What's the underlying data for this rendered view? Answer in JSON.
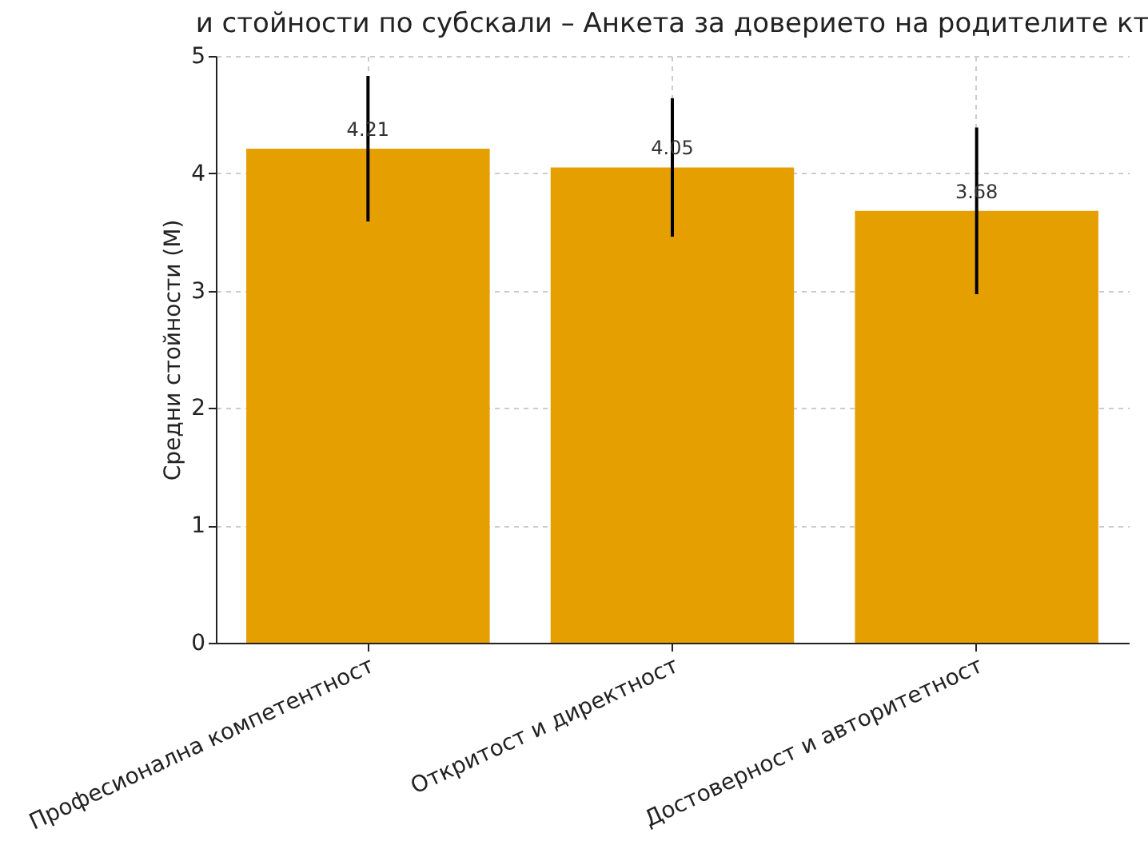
{
  "chart_data": {
    "type": "bar",
    "title": "и стойности по субскали – Анкета за доверието на родителите кт",
    "ylabel": "Средни стойности (M)",
    "categories": [
      "Професионална компетентност",
      "Откритост и директност",
      "Достоверност и авторитетност"
    ],
    "values": [
      4.21,
      4.05,
      3.68
    ],
    "color": "#e69f00",
    "errors": [
      0.62,
      0.59,
      0.71
    ],
    "ylim": [
      0,
      5
    ],
    "yticks": [
      0,
      1,
      2,
      3,
      4,
      5
    ],
    "grid": true,
    "data_labels": true
  }
}
